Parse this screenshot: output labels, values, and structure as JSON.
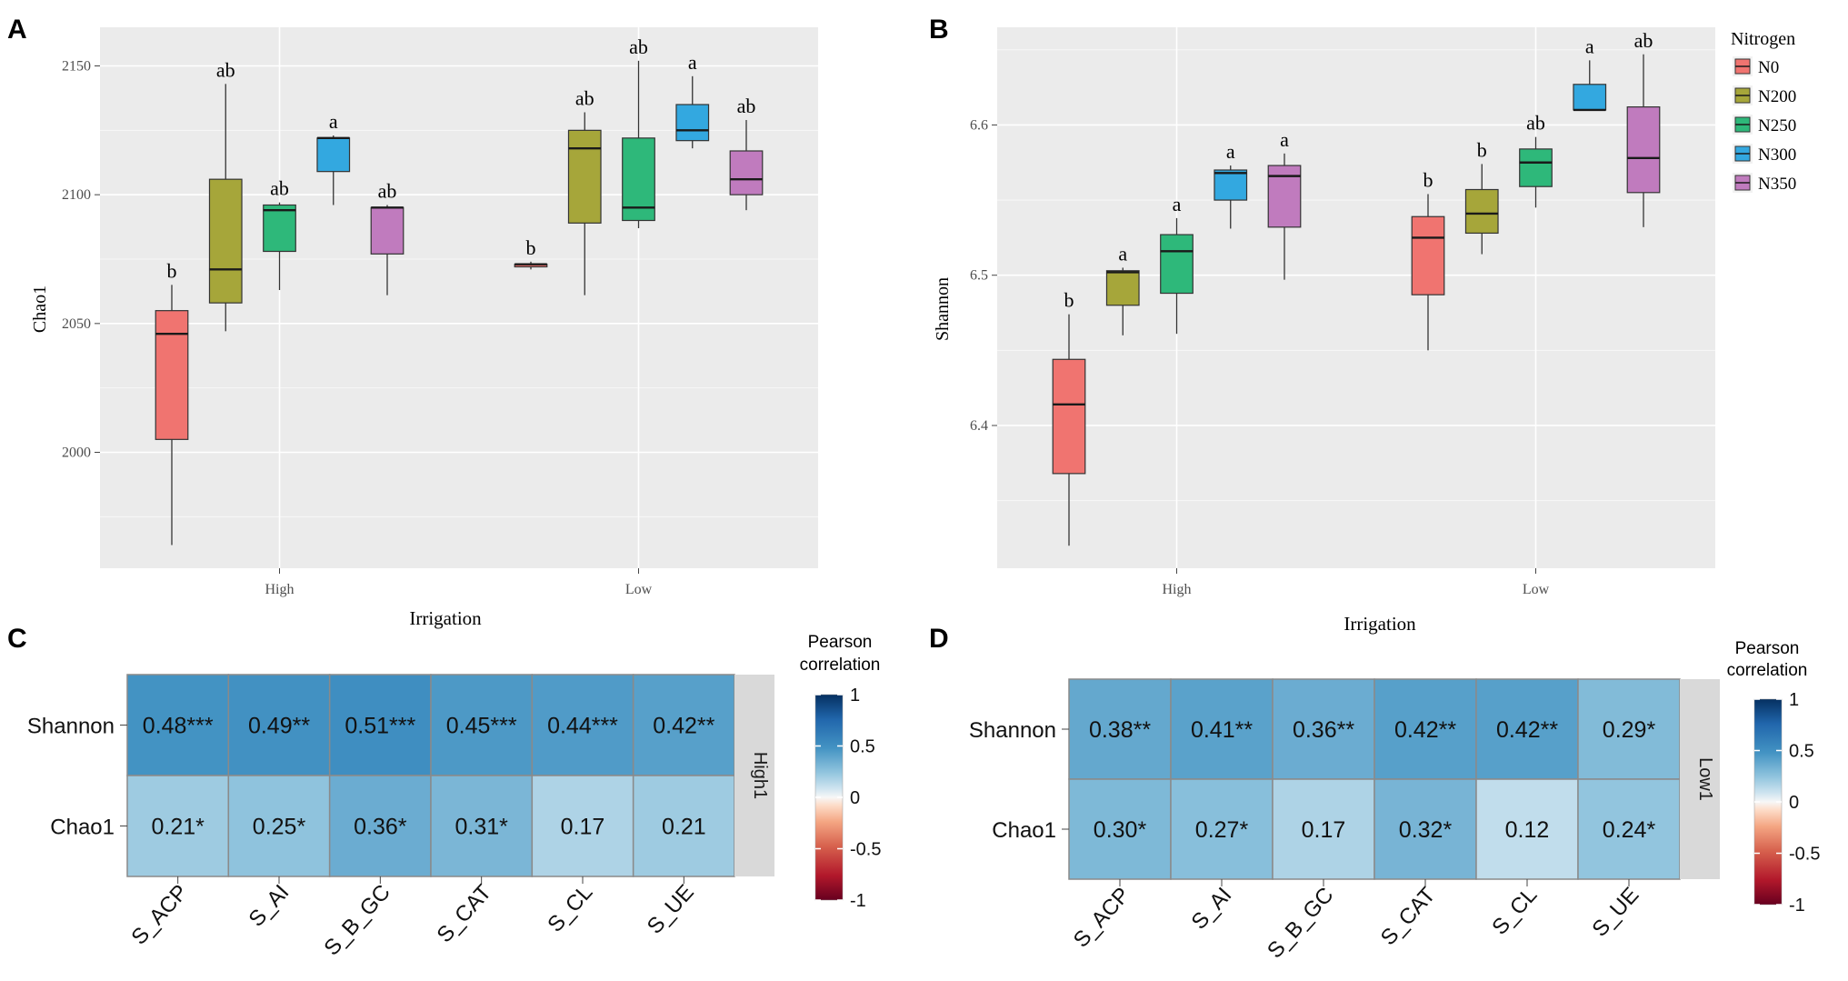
{
  "panels": {
    "A": {
      "letter": "A"
    },
    "B": {
      "letter": "B"
    },
    "C": {
      "letter": "C"
    },
    "D": {
      "letter": "D"
    }
  },
  "chart_data": [
    {
      "id": "A",
      "type": "box",
      "xlabel": "Irrigation",
      "ylabel": "Chao1",
      "ylim": [
        1955,
        2165
      ],
      "yticks": [
        2000,
        2050,
        2100,
        2150
      ],
      "categories": [
        "High",
        "Low"
      ],
      "legend_title": "Nitrogen",
      "legend": [
        "N0",
        "N200",
        "N250",
        "N300",
        "N350"
      ],
      "colors": [
        "#F07470",
        "#A6A63A",
        "#2EB87A",
        "#33A8E0",
        "#C07BBE"
      ],
      "boxes": [
        {
          "group": "High",
          "series": "N0",
          "min": 1964,
          "q1": 2005,
          "median": 2046,
          "q3": 2055,
          "max": 2065,
          "letter": "b"
        },
        {
          "group": "High",
          "series": "N200",
          "min": 2047,
          "q1": 2058,
          "median": 2071,
          "q3": 2106,
          "max": 2143,
          "letter": "ab"
        },
        {
          "group": "High",
          "series": "N250",
          "min": 2063,
          "q1": 2078,
          "median": 2094,
          "q3": 2096,
          "max": 2097,
          "letter": "ab"
        },
        {
          "group": "High",
          "series": "N300",
          "min": 2096,
          "q1": 2109,
          "median": 2122,
          "q3": 2122,
          "max": 2123,
          "letter": "a"
        },
        {
          "group": "High",
          "series": "N350",
          "min": 2061,
          "q1": 2077,
          "median": 2095,
          "q3": 2095,
          "max": 2096,
          "letter": "ab"
        },
        {
          "group": "Low",
          "series": "N0",
          "min": 2071,
          "q1": 2072,
          "median": 2073,
          "q3": 2073,
          "max": 2074,
          "letter": "b"
        },
        {
          "group": "Low",
          "series": "N200",
          "min": 2061,
          "q1": 2089,
          "median": 2118,
          "q3": 2125,
          "max": 2132,
          "letter": "ab"
        },
        {
          "group": "Low",
          "series": "N250",
          "min": 2087,
          "q1": 2090,
          "median": 2095,
          "q3": 2122,
          "max": 2152,
          "letter": "ab"
        },
        {
          "group": "Low",
          "series": "N300",
          "min": 2118,
          "q1": 2121,
          "median": 2125,
          "q3": 2135,
          "max": 2146,
          "letter": "a"
        },
        {
          "group": "Low",
          "series": "N350",
          "min": 2094,
          "q1": 2100,
          "median": 2106,
          "q3": 2117,
          "max": 2129,
          "letter": "ab"
        }
      ]
    },
    {
      "id": "B",
      "type": "box",
      "xlabel": "Irrigation",
      "ylabel": "Shannon",
      "ylim": [
        6.305,
        6.665
      ],
      "yticks": [
        6.4,
        6.5,
        6.6
      ],
      "categories": [
        "High",
        "Low"
      ],
      "legend_title": "Nitrogen",
      "legend": [
        "N0",
        "N200",
        "N250",
        "N300",
        "N350"
      ],
      "colors": [
        "#F07470",
        "#A6A63A",
        "#2EB87A",
        "#33A8E0",
        "#C07BBE"
      ],
      "boxes": [
        {
          "group": "High",
          "series": "N0",
          "min": 6.32,
          "q1": 6.368,
          "median": 6.414,
          "q3": 6.444,
          "max": 6.474,
          "letter": "b"
        },
        {
          "group": "High",
          "series": "N200",
          "min": 6.46,
          "q1": 6.48,
          "median": 6.502,
          "q3": 6.503,
          "max": 6.505,
          "letter": "a"
        },
        {
          "group": "High",
          "series": "N250",
          "min": 6.461,
          "q1": 6.488,
          "median": 6.516,
          "q3": 6.527,
          "max": 6.538,
          "letter": "a"
        },
        {
          "group": "High",
          "series": "N300",
          "min": 6.531,
          "q1": 6.55,
          "median": 6.568,
          "q3": 6.57,
          "max": 6.573,
          "letter": "a"
        },
        {
          "group": "High",
          "series": "N350",
          "min": 6.497,
          "q1": 6.532,
          "median": 6.566,
          "q3": 6.573,
          "max": 6.581,
          "letter": "a"
        },
        {
          "group": "Low",
          "series": "N0",
          "min": 6.45,
          "q1": 6.487,
          "median": 6.525,
          "q3": 6.539,
          "max": 6.554,
          "letter": "b"
        },
        {
          "group": "Low",
          "series": "N200",
          "min": 6.514,
          "q1": 6.528,
          "median": 6.541,
          "q3": 6.557,
          "max": 6.574,
          "letter": "b"
        },
        {
          "group": "Low",
          "series": "N250",
          "min": 6.545,
          "q1": 6.559,
          "median": 6.575,
          "q3": 6.584,
          "max": 6.592,
          "letter": "ab"
        },
        {
          "group": "Low",
          "series": "N300",
          "min": 6.61,
          "q1": 6.61,
          "median": 6.61,
          "q3": 6.627,
          "max": 6.643,
          "letter": "a"
        },
        {
          "group": "Low",
          "series": "N350",
          "min": 6.532,
          "q1": 6.555,
          "median": 6.578,
          "q3": 6.612,
          "max": 6.647,
          "letter": "ab"
        }
      ]
    },
    {
      "id": "C",
      "type": "heatmap",
      "rows": [
        "Shannon",
        "Chao1"
      ],
      "columns": [
        "S_ACP",
        "S_AI",
        "S_B_GC",
        "S_CAT",
        "S_CL",
        "S_UE"
      ],
      "values": [
        [
          0.48,
          0.49,
          0.51,
          0.45,
          0.44,
          0.42
        ],
        [
          0.21,
          0.25,
          0.36,
          0.31,
          0.17,
          0.21
        ]
      ],
      "labels": [
        [
          "0.48***",
          "0.49**",
          "0.51***",
          "0.45***",
          "0.44***",
          "0.42**"
        ],
        [
          "0.21*",
          "0.25*",
          "0.36*",
          "0.31*",
          "0.17",
          "0.21"
        ]
      ],
      "facet": "High1",
      "colorbar_title": [
        "Pearson",
        "correlation"
      ],
      "colorbar_ticks": [
        "1",
        "0.5",
        "0",
        "-0.5",
        "-1"
      ],
      "colorbar_tick_values": [
        1,
        0.5,
        0,
        -0.5,
        -1
      ],
      "clim": [
        -1,
        1
      ]
    },
    {
      "id": "D",
      "type": "heatmap",
      "rows": [
        "Shannon",
        "Chao1"
      ],
      "columns": [
        "S_ACP",
        "S_AI",
        "S_B_GC",
        "S_CAT",
        "S_CL",
        "S_UE"
      ],
      "values": [
        [
          0.38,
          0.41,
          0.36,
          0.42,
          0.42,
          0.29
        ],
        [
          0.3,
          0.27,
          0.17,
          0.32,
          0.12,
          0.24
        ]
      ],
      "labels": [
        [
          "0.38**",
          "0.41**",
          "0.36**",
          "0.42**",
          "0.42**",
          "0.29*"
        ],
        [
          "0.30*",
          "0.27*",
          "0.17",
          "0.32*",
          "0.12",
          "0.24*"
        ]
      ],
      "facet": "Low1",
      "colorbar_title": [
        "Pearson",
        "correlation"
      ],
      "colorbar_ticks": [
        "1",
        "0.5",
        "0",
        "-0.5",
        "-1"
      ],
      "colorbar_tick_values": [
        1,
        0.5,
        0,
        -0.5,
        -1
      ],
      "clim": [
        -1,
        1
      ]
    }
  ]
}
